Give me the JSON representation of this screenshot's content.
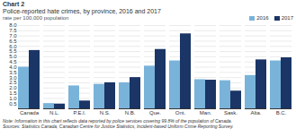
{
  "chart_data": {
    "type": "bar",
    "title": "Chart 2",
    "subtitle": "Police-reported hate crimes, by province, 2016 and 2017",
    "ylabel": "rate per 100,000 population",
    "categories": [
      "Canada",
      "N.L.",
      "P.E.I.",
      "N.S.",
      "N.B.",
      "Que.",
      "Ont.",
      "Man.",
      "Sask.",
      "Alta.",
      "B.C."
    ],
    "series": [
      {
        "name": "2016",
        "color": "#7ab3d9",
        "values": [
          4.0,
          0.5,
          2.2,
          2.35,
          2.5,
          4.1,
          4.6,
          2.8,
          2.7,
          3.2,
          4.6
        ]
      },
      {
        "name": "2017",
        "color": "#1a3566",
        "values": [
          5.6,
          0.45,
          0.75,
          2.5,
          3.0,
          5.7,
          7.2,
          2.75,
          1.7,
          4.7,
          4.9
        ]
      }
    ],
    "ylim": [
      0,
      8.0
    ],
    "yticks": [
      0.5,
      {
        "value": 1.0,
        "label": "1.0"
      },
      1.5,
      {
        "value": 2.0,
        "label": "2.0"
      },
      2.5,
      {
        "value": 3.0,
        "label": "3.0"
      },
      3.5,
      {
        "value": 4.0,
        "label": "4.0"
      },
      4.5,
      {
        "value": 5.0,
        "label": "5.0"
      },
      5.5,
      {
        "value": 6.0,
        "label": "6.0"
      },
      6.5,
      {
        "value": 7.0,
        "label": "7.0"
      },
      7.5,
      {
        "value": 8.0,
        "label": "8.0"
      }
    ],
    "grid": true,
    "legend": "upper right",
    "annotations": [
      "Note: Information in this chart reflects data reported by police services covering 99.8% of the population of Canada.",
      "Sources: Statistics Canada, Canadian Centre for Justice Statistics, Incident-based Uniform Crime Reporting Survey."
    ]
  }
}
